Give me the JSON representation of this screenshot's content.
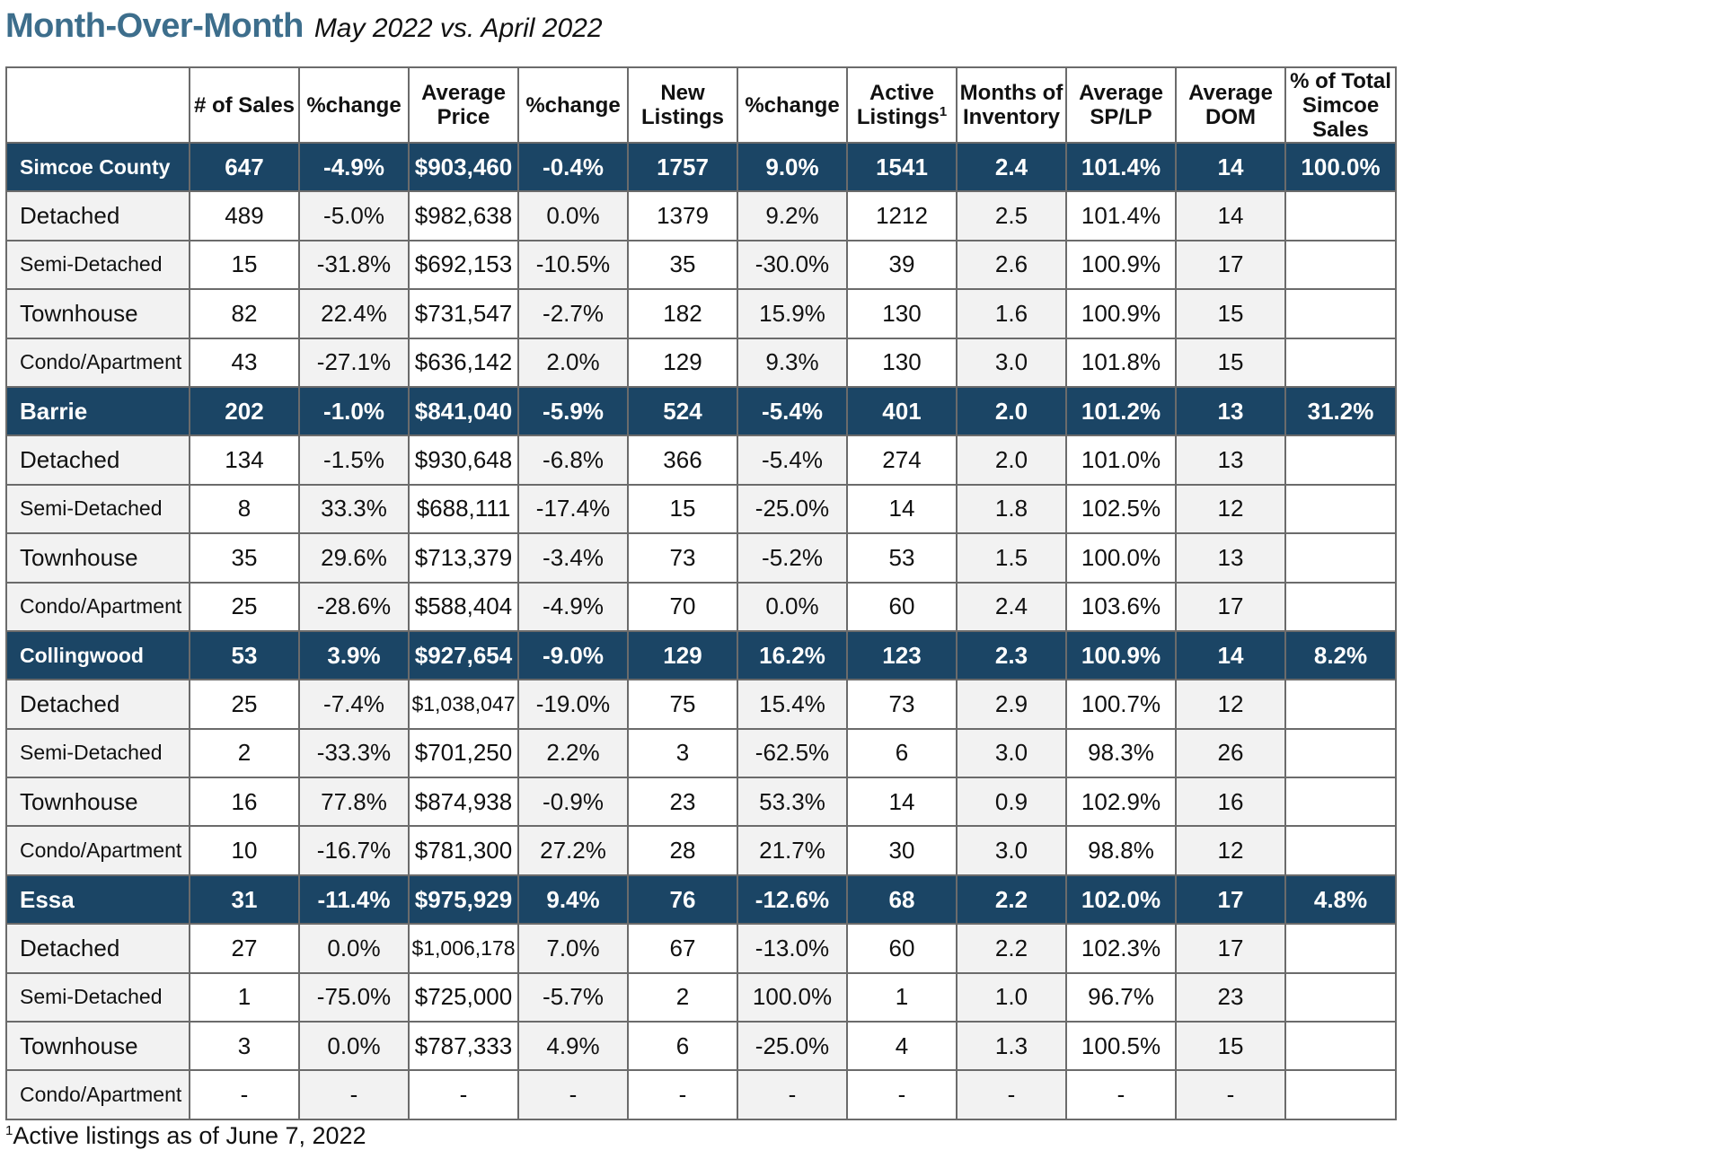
{
  "title": "Month-Over-Month",
  "subtitle": "May 2022 vs. April 2022",
  "columns": [
    {
      "text": "",
      "sup": ""
    },
    {
      "text": "# of Sales",
      "sup": ""
    },
    {
      "text": "%change",
      "sup": ""
    },
    {
      "text": "Average Price",
      "sup": ""
    },
    {
      "text": "%change",
      "sup": ""
    },
    {
      "text": "New Listings",
      "sup": ""
    },
    {
      "text": "%change",
      "sup": ""
    },
    {
      "text": "Active Listings",
      "sup": "1"
    },
    {
      "text": "Months of Inventory",
      "sup": ""
    },
    {
      "text": "Average SP/LP",
      "sup": ""
    },
    {
      "text": "Average DOM",
      "sup": ""
    },
    {
      "text": "% of Total Simcoe Sales",
      "sup": ""
    }
  ],
  "rows": [
    {
      "type": "region",
      "cells": [
        "Simcoe County",
        "647",
        "-4.9%",
        "$903,460",
        "-0.4%",
        "1757",
        "9.0%",
        "1541",
        "2.4",
        "101.4%",
        "14",
        "100.0%"
      ]
    },
    {
      "type": "sub",
      "cells": [
        "Detached",
        "489",
        "-5.0%",
        "$982,638",
        "0.0%",
        "1379",
        "9.2%",
        "1212",
        "2.5",
        "101.4%",
        "14",
        ""
      ]
    },
    {
      "type": "sub",
      "cells": [
        "Semi-Detached",
        "15",
        "-31.8%",
        "$692,153",
        "-10.5%",
        "35",
        "-30.0%",
        "39",
        "2.6",
        "100.9%",
        "17",
        ""
      ]
    },
    {
      "type": "sub",
      "cells": [
        "Townhouse",
        "82",
        "22.4%",
        "$731,547",
        "-2.7%",
        "182",
        "15.9%",
        "130",
        "1.6",
        "100.9%",
        "15",
        ""
      ]
    },
    {
      "type": "sub",
      "cells": [
        "Condo/Apartment",
        "43",
        "-27.1%",
        "$636,142",
        "2.0%",
        "129",
        "9.3%",
        "130",
        "3.0",
        "101.8%",
        "15",
        ""
      ]
    },
    {
      "type": "region",
      "cells": [
        "Barrie",
        "202",
        "-1.0%",
        "$841,040",
        "-5.9%",
        "524",
        "-5.4%",
        "401",
        "2.0",
        "101.2%",
        "13",
        "31.2%"
      ]
    },
    {
      "type": "sub",
      "cells": [
        "Detached",
        "134",
        "-1.5%",
        "$930,648",
        "-6.8%",
        "366",
        "-5.4%",
        "274",
        "2.0",
        "101.0%",
        "13",
        ""
      ]
    },
    {
      "type": "sub",
      "cells": [
        "Semi-Detached",
        "8",
        "33.3%",
        "$688,111",
        "-17.4%",
        "15",
        "-25.0%",
        "14",
        "1.8",
        "102.5%",
        "12",
        ""
      ]
    },
    {
      "type": "sub",
      "cells": [
        "Townhouse",
        "35",
        "29.6%",
        "$713,379",
        "-3.4%",
        "73",
        "-5.2%",
        "53",
        "1.5",
        "100.0%",
        "13",
        ""
      ]
    },
    {
      "type": "sub",
      "cells": [
        "Condo/Apartment",
        "25",
        "-28.6%",
        "$588,404",
        "-4.9%",
        "70",
        "0.0%",
        "60",
        "2.4",
        "103.6%",
        "17",
        ""
      ]
    },
    {
      "type": "region",
      "cells": [
        "Collingwood",
        "53",
        "3.9%",
        "$927,654",
        "-9.0%",
        "129",
        "16.2%",
        "123",
        "2.3",
        "100.9%",
        "14",
        "8.2%"
      ]
    },
    {
      "type": "sub",
      "cells": [
        "Detached",
        "25",
        "-7.4%",
        "$1,038,047",
        "-19.0%",
        "75",
        "15.4%",
        "73",
        "2.9",
        "100.7%",
        "12",
        ""
      ]
    },
    {
      "type": "sub",
      "cells": [
        "Semi-Detached",
        "2",
        "-33.3%",
        "$701,250",
        "2.2%",
        "3",
        "-62.5%",
        "6",
        "3.0",
        "98.3%",
        "26",
        ""
      ]
    },
    {
      "type": "sub",
      "cells": [
        "Townhouse",
        "16",
        "77.8%",
        "$874,938",
        "-0.9%",
        "23",
        "53.3%",
        "14",
        "0.9",
        "102.9%",
        "16",
        ""
      ]
    },
    {
      "type": "sub",
      "cells": [
        "Condo/Apartment",
        "10",
        "-16.7%",
        "$781,300",
        "27.2%",
        "28",
        "21.7%",
        "30",
        "3.0",
        "98.8%",
        "12",
        ""
      ]
    },
    {
      "type": "region",
      "cells": [
        "Essa",
        "31",
        "-11.4%",
        "$975,929",
        "9.4%",
        "76",
        "-12.6%",
        "68",
        "2.2",
        "102.0%",
        "17",
        "4.8%"
      ]
    },
    {
      "type": "sub",
      "cells": [
        "Detached",
        "27",
        "0.0%",
        "$1,006,178",
        "7.0%",
        "67",
        "-13.0%",
        "60",
        "2.2",
        "102.3%",
        "17",
        ""
      ]
    },
    {
      "type": "sub",
      "cells": [
        "Semi-Detached",
        "1",
        "-75.0%",
        "$725,000",
        "-5.7%",
        "2",
        "100.0%",
        "1",
        "1.0",
        "96.7%",
        "23",
        ""
      ]
    },
    {
      "type": "sub",
      "cells": [
        "Townhouse",
        "3",
        "0.0%",
        "$787,333",
        "4.9%",
        "6",
        "-25.0%",
        "4",
        "1.3",
        "100.5%",
        "15",
        ""
      ]
    },
    {
      "type": "sub",
      "cells": [
        "Condo/Apartment",
        "-",
        "-",
        "-",
        "-",
        "-",
        "-",
        "-",
        "-",
        "-",
        "-",
        ""
      ]
    }
  ],
  "footnote": {
    "sup": "1",
    "text": "Active listings as of June 7, 2022"
  }
}
